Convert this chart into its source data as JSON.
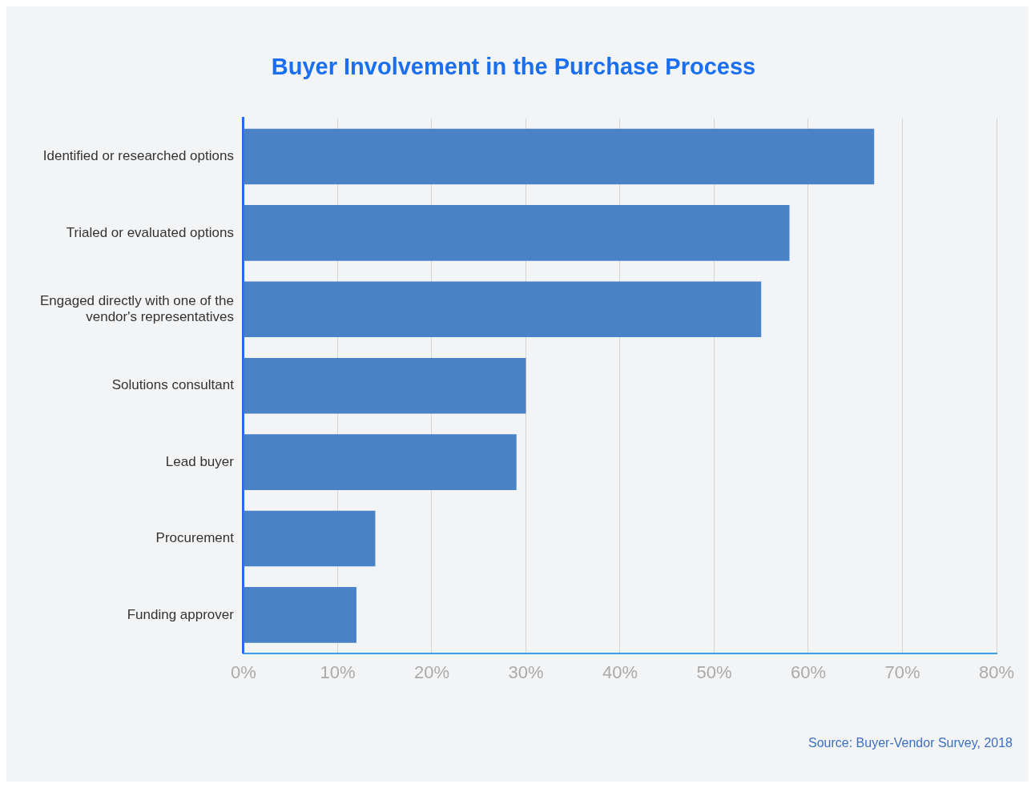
{
  "chart_data": {
    "type": "bar",
    "orientation": "horizontal",
    "title": "Buyer Involvement in the Purchase Process",
    "categories": [
      "Identified or researched options",
      "Trialed or evaluated options",
      "Engaged directly with one of the vendor's representatives",
      "Solutions consultant",
      "Lead buyer",
      "Procurement",
      "Funding approver"
    ],
    "values": [
      67,
      58,
      55,
      30,
      29,
      14,
      12
    ],
    "color": "#4a82c8",
    "xlim": [
      0,
      80
    ],
    "xticks": [
      {
        "value": 0,
        "label": "0%"
      },
      {
        "value": 10,
        "label": "10%"
      },
      {
        "value": 20,
        "label": "20%"
      },
      {
        "value": 30,
        "label": "30%"
      },
      {
        "value": 40,
        "label": "40%"
      },
      {
        "value": 50,
        "label": "50%"
      },
      {
        "value": 60,
        "label": "60%"
      },
      {
        "value": 70,
        "label": "70%"
      },
      {
        "value": 80,
        "label": "80%"
      }
    ],
    "grid": "x",
    "legend": false,
    "annotations": [
      "Source: Buyer-Vendor Survey, 2018"
    ]
  }
}
